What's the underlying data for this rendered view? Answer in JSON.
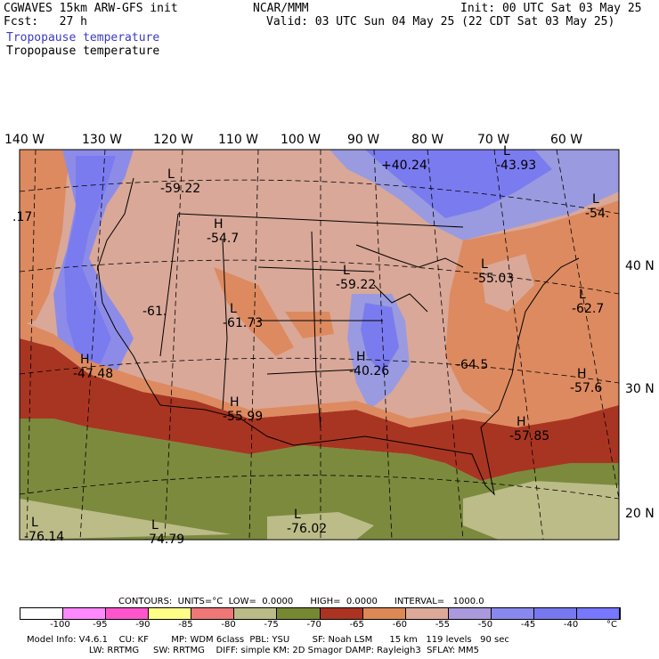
{
  "header": {
    "model": "CGWAVES 15km ARW-GFS init",
    "forecast": "Fcst:   27 h",
    "org": "NCAR/MMM",
    "init": "Init: 00 UTC Sat 03 May 25",
    "valid": "Valid: 03 UTC Sun 04 May 25 (22 CDT Sat 03 May 25)",
    "field_blue": "Tropopause temperature",
    "field_black": "Tropopause temperature"
  },
  "lon_labels": [
    "140 W",
    "130 W",
    "120 W",
    "110 W",
    "100 W",
    "90 W",
    "80 W",
    "70 W",
    "60 W"
  ],
  "lat_labels": [
    "40 N",
    "30 N",
    "20 N"
  ],
  "extrema": [
    {
      "type": "L",
      "value": "-59.22"
    },
    {
      "type": "H",
      "value": "-54.7"
    },
    {
      "type": "",
      "value": "+40.24"
    },
    {
      "type": "L",
      "value": "-43.93"
    },
    {
      "type": "",
      "value": ".17"
    },
    {
      "type": "L",
      "value": "-54."
    },
    {
      "type": "L",
      "value": "-59.22"
    },
    {
      "type": "L",
      "value": "-55.03"
    },
    {
      "type": "L",
      "value": "-62.7"
    },
    {
      "type": "",
      "value": "-61."
    },
    {
      "type": "L",
      "value": "-61.73"
    },
    {
      "type": "H",
      "value": "-47.48"
    },
    {
      "type": "H",
      "value": "-40.26"
    },
    {
      "type": "",
      "value": "-64.5"
    },
    {
      "type": "H",
      "value": "-57.6"
    },
    {
      "type": "H",
      "value": "-55.99"
    },
    {
      "type": "H",
      "value": "-57.85"
    },
    {
      "type": "L",
      "value": "-76.14"
    },
    {
      "type": "L",
      "value": "-76.02"
    },
    {
      "type": "L",
      "value": "-74.79"
    }
  ],
  "contours": {
    "units_line": "CONTOURS:  UNITS=°C  LOW=  0.0000      HIGH=  0.0000      INTERVAL=   1000.0"
  },
  "colorbar": {
    "colors": [
      "#ffffff",
      "#ff88ff",
      "#ff55cc",
      "#ffff88",
      "#ee7777",
      "#bbbb88",
      "#778833",
      "#aa3322",
      "#dd8855",
      "#ddaa99",
      "#aa99dd",
      "#8888ee",
      "#7777ee",
      "#7777ff"
    ],
    "ticks": [
      "-100",
      "-95",
      "-90",
      "-85",
      "-80",
      "-75",
      "-70",
      "-65",
      "-60",
      "-55",
      "-50",
      "-45",
      "-40",
      "°C"
    ]
  },
  "footer": {
    "line1": "Model Info: V4.6.1    CU: KF        MP: WDM 6class  PBL: YSU        SF: Noah LSM      15 km   119 levels   90 sec",
    "line2": "                      LW: RRTMG     SW: RRTMG    DIFF: simple KM: 2D Smagor DAMP: Rayleigh3  SFLAY: MM5"
  },
  "legend_colors": {
    "blue_high": "#7b7bf0",
    "lavender": "#9a9ae0",
    "pink_brown": "#d9a898",
    "orange": "#dd8a60",
    "dark_red": "#a83522",
    "olive": "#7c8a3e",
    "khaki": "#bcbc88"
  }
}
